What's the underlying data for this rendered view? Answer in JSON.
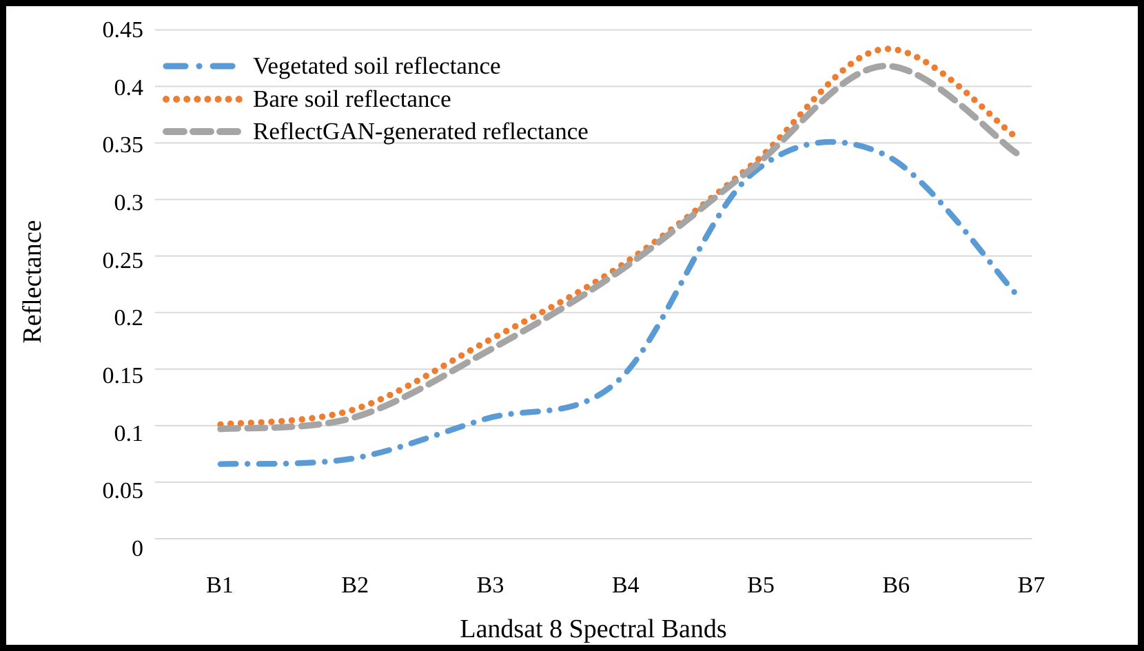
{
  "figure": {
    "background": "#ffffff",
    "border_color": "#000000",
    "gridline_color": "#D9D9D9",
    "text_color": "#000000"
  },
  "chart_data": {
    "type": "line",
    "title": "",
    "xlabel": "Landsat 8 Spectral Bands",
    "ylabel": "Reflectance",
    "categories": [
      "B1",
      "B2",
      "B3",
      "B4",
      "B5",
      "B6",
      "B7"
    ],
    "y_ticks": [
      "0",
      "0.05",
      "0.1",
      "0.15",
      "0.2",
      "0.25",
      "0.3",
      "0.35",
      "0.4",
      "0.45"
    ],
    "ylim": [
      0,
      0.45
    ],
    "y_tick_step": 0.05,
    "grid": "horizontal",
    "line_style": "smooth",
    "legend_position": "top-left-inside",
    "series": [
      {
        "name": "Vegetated soil reflectance",
        "color": "#5B9BD5",
        "dash": "dash-dot",
        "values": [
          0.066,
          0.071,
          0.106,
          0.14,
          0.322,
          0.34,
          0.216
        ]
      },
      {
        "name": "Bare soil reflectance",
        "color": "#ED7D31",
        "dash": "dot",
        "values": [
          0.101,
          0.114,
          0.174,
          0.24,
          0.33,
          0.433,
          0.355
        ]
      },
      {
        "name": "ReflectGAN-generated reflectance",
        "color": "#A5A5A5",
        "dash": "dash",
        "values": [
          0.097,
          0.107,
          0.165,
          0.236,
          0.327,
          0.418,
          0.341
        ]
      }
    ]
  }
}
